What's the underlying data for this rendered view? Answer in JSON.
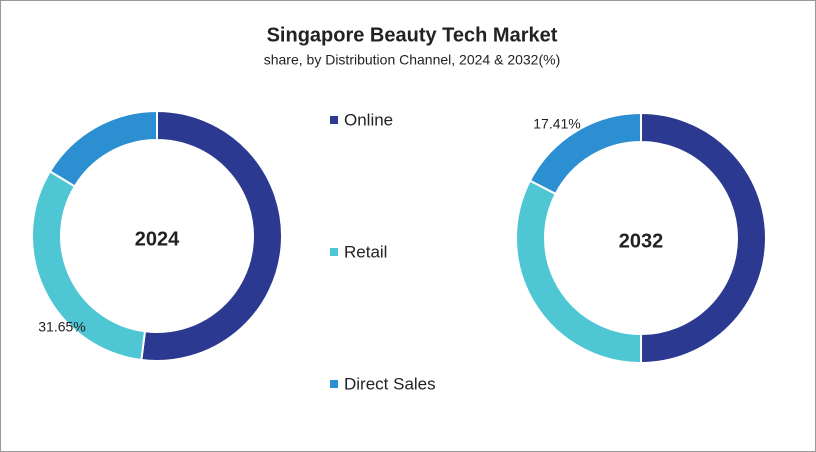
{
  "chart_data": {
    "type": "donut",
    "title": "Singapore Beauty Tech Market",
    "subtitle": "share, by Distribution Channel, 2024 & 2032(%)",
    "categories": [
      "Online",
      "Retail",
      "Direct Sales"
    ],
    "colors": [
      "#2b3990",
      "#4fc6d3",
      "#2b8fd1"
    ],
    "charts": [
      {
        "label": "2024",
        "values": [
          52,
          31.65,
          16.35
        ],
        "value_labels": [
          null,
          "31.65%",
          null
        ]
      },
      {
        "label": "2032",
        "values": [
          50,
          32.59,
          17.41
        ],
        "value_labels": [
          null,
          null,
          "17.41%"
        ]
      }
    ]
  }
}
